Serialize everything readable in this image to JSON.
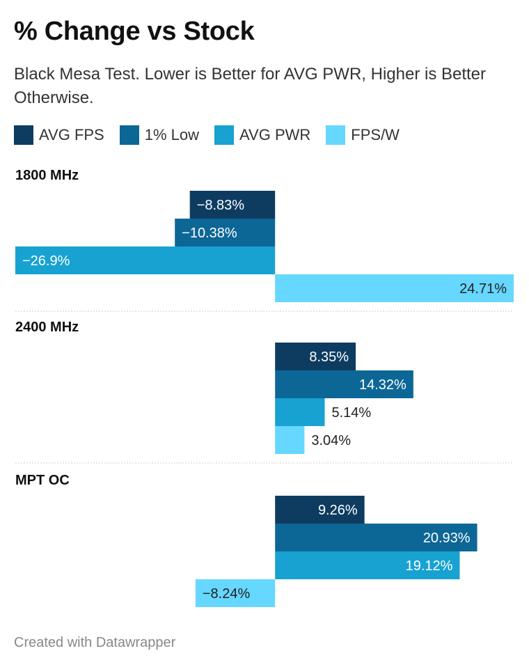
{
  "chart_data": {
    "type": "bar",
    "orientation": "horizontal",
    "title": "% Change vs Stock",
    "subtitle": "Black Mesa Test. Lower is Better for AVG PWR, Higher is Better Otherwise.",
    "footer": "Created with Datawrapper",
    "xlim": [
      -26.9,
      24.71
    ],
    "grid": false,
    "legend_position": "top-left",
    "groups": [
      {
        "label": "1800 MHz",
        "values": [
          -8.83,
          -10.38,
          -26.9,
          24.71
        ],
        "labels": [
          "−8.83%",
          "−10.38%",
          "−26.9%",
          "24.71%"
        ]
      },
      {
        "label": "2400 MHz",
        "values": [
          8.35,
          14.32,
          5.14,
          3.04
        ],
        "labels": [
          "8.35%",
          "14.32%",
          "5.14%",
          "3.04%"
        ]
      },
      {
        "label": "MPT OC",
        "values": [
          9.26,
          20.93,
          19.12,
          -8.24
        ],
        "labels": [
          "9.26%",
          "20.93%",
          "19.12%",
          "−8.24%"
        ]
      }
    ],
    "series": [
      {
        "name": "AVG FPS",
        "color": "#0e3c61"
      },
      {
        "name": "1% Low",
        "color": "#0d6796"
      },
      {
        "name": "AVG PWR",
        "color": "#18a2d1"
      },
      {
        "name": "FPS/W",
        "color": "#66d7ff"
      }
    ]
  }
}
